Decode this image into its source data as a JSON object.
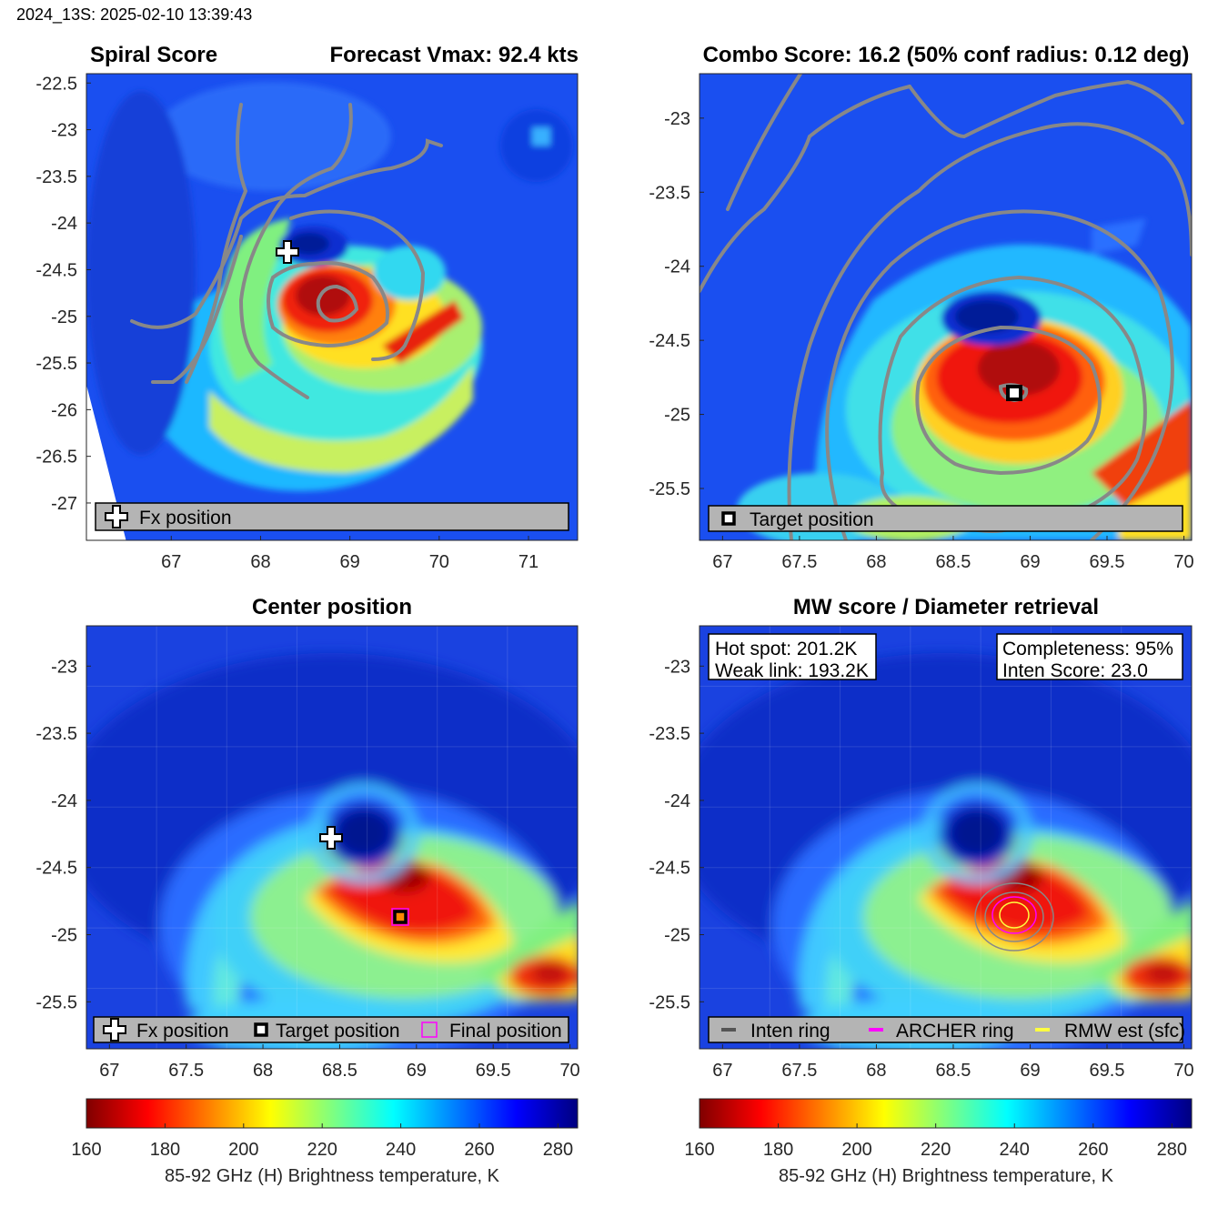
{
  "header": {
    "stamp": "2024_13S: 2025-02-10 13:39:43"
  },
  "panels": {
    "tl": {
      "title_left": "Spiral Score",
      "title_right": "Forecast Vmax: 92.4 kts",
      "legend": [
        "Fx position"
      ]
    },
    "tr": {
      "title": "Combo Score: 16.2  (50% conf radius: 0.12 deg)",
      "legend": [
        "Target position"
      ]
    },
    "bl": {
      "title": "Center position",
      "legend": [
        "Fx position",
        "Target position",
        "Final position"
      ]
    },
    "br": {
      "title": "MW score / Diameter retrieval",
      "legend": [
        "Inten ring",
        "ARCHER ring",
        "RMW est (sfc)"
      ],
      "info_left": [
        "Hot spot: 201.2K",
        "Weak link: 193.2K"
      ],
      "info_right": [
        "Completeness: 95%",
        "Inten Score: 23.0"
      ]
    }
  },
  "colorbar": {
    "label": "85-92 GHz (H) Brightness temperature, K",
    "range": [
      160,
      285
    ],
    "ticks": [
      "160",
      "180",
      "200",
      "220",
      "240",
      "260",
      "280"
    ]
  },
  "chart_data": [
    {
      "id": "spiral",
      "type": "heatmap",
      "title": "Spiral Score",
      "subtitle": "Forecast Vmax: 92.4 kts",
      "xlim": [
        66.05,
        71.55
      ],
      "ylim": [
        -27.4,
        -22.4
      ],
      "xticks": [
        "67",
        "68",
        "69",
        "70",
        "71"
      ],
      "yticks": [
        "-22.5",
        "-23",
        "-23.5",
        "-24",
        "-24.5",
        "-25",
        "-25.5",
        "-26",
        "-26.5",
        "-27"
      ],
      "fx_position": [
        68.3,
        -24.3
      ]
    },
    {
      "id": "combo",
      "type": "heatmap",
      "title": "Combo Score: 16.2  (50% conf radius: 0.12 deg)",
      "xlim": [
        66.85,
        70.05
      ],
      "ylim": [
        -25.85,
        -22.7
      ],
      "xticks": [
        "67",
        "67.5",
        "68",
        "68.5",
        "69",
        "69.5",
        "70"
      ],
      "yticks": [
        "-23",
        "-23.5",
        "-24",
        "-24.5",
        "-25",
        "-25.5"
      ],
      "target_position": [
        68.8,
        -24.88
      ]
    },
    {
      "id": "center",
      "type": "heatmap",
      "title": "Center position",
      "xlim": [
        66.85,
        70.05
      ],
      "ylim": [
        -25.85,
        -22.7
      ],
      "xticks": [
        "67",
        "67.5",
        "68",
        "68.5",
        "69",
        "69.5",
        "70"
      ],
      "yticks": [
        "-23",
        "-23.5",
        "-24",
        "-24.5",
        "-25",
        "-25.5"
      ],
      "fx_position": [
        68.3,
        -24.28
      ],
      "target_position": [
        68.8,
        -24.88
      ],
      "final_position": [
        68.8,
        -24.88
      ]
    },
    {
      "id": "mw",
      "type": "heatmap",
      "title": "MW score / Diameter retrieval",
      "xlim": [
        66.85,
        70.05
      ],
      "ylim": [
        -25.85,
        -22.7
      ],
      "xticks": [
        "67",
        "67.5",
        "68",
        "68.5",
        "69",
        "69.5",
        "70"
      ],
      "yticks": [
        "-23",
        "-23.5",
        "-24",
        "-24.5",
        "-25",
        "-25.5"
      ],
      "hot_spot_K": 201.2,
      "weak_link_K": 193.2,
      "completeness_pct": 95,
      "inten_score": 23.0,
      "ring_center": [
        68.8,
        -24.88
      ]
    }
  ]
}
